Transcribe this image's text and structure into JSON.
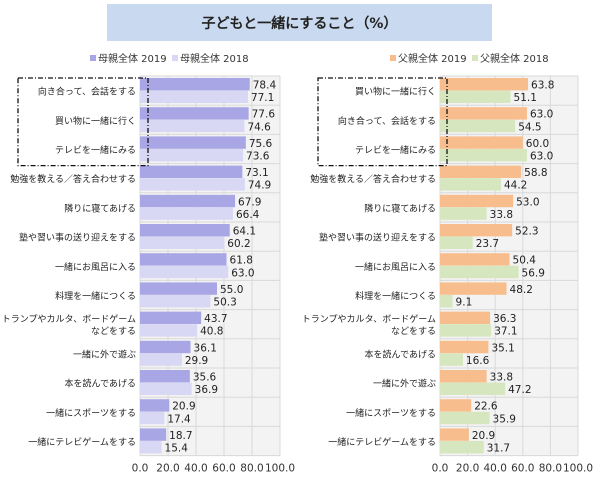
{
  "title": "子どもと一緒にすること（%）",
  "chart_data": [
    {
      "type": "bar",
      "orientation": "horizontal",
      "categories": [
        "向き合って、会話をする",
        "買い物に一緒に行く",
        "テレビを一緒にみる",
        "勉強を教える／答え合わせする",
        "隣りに寝てあげる",
        "塾や習い事の送り迎えをする",
        "一緒にお風呂に入る",
        "料理を一緒につくる",
        "トランプやカルタ、ボードゲーム\nなどをする",
        "一緒に外で遊ぶ",
        "本を読んであげる",
        "一緒にスポーツをする",
        "一緒にテレビゲームをする"
      ],
      "series": [
        {
          "name": "母親全体 2019",
          "color": "#a9a6e6",
          "values": [
            78.4,
            77.6,
            75.6,
            73.1,
            67.9,
            64.1,
            61.8,
            55.0,
            43.7,
            36.1,
            35.6,
            20.9,
            18.7
          ]
        },
        {
          "name": "母親全体 2018",
          "color": "#d9d8f4",
          "values": [
            77.1,
            74.6,
            73.6,
            74.9,
            66.4,
            60.2,
            63.0,
            50.3,
            40.8,
            29.9,
            36.9,
            17.4,
            15.4
          ]
        }
      ],
      "xlim": [
        0,
        100
      ],
      "ticks": [
        "0.0",
        "20.0",
        "40.0",
        "60.0",
        "80.0",
        "100.0"
      ],
      "legend": "top",
      "grid": true,
      "highlighted_top": 3
    },
    {
      "type": "bar",
      "orientation": "horizontal",
      "categories": [
        "買い物に一緒に行く",
        "向き合って、会話をする",
        "テレビを一緒にみる",
        "勉強を教える／答え合わせする",
        "隣りに寝てあげる",
        "塾や習い事の送り迎えをする",
        "一緒にお風呂に入る",
        "料理を一緒につくる",
        "トランプやカルタ、ボードゲーム\nなどをする",
        "本を読んであげる",
        "一緒に外で遊ぶ",
        "一緒にスポーツをする",
        "一緒にテレビゲームをする"
      ],
      "series": [
        {
          "name": "父親全体 2019",
          "color": "#f8bd8d",
          "values": [
            63.8,
            63.0,
            60.0,
            58.8,
            53.0,
            52.3,
            50.4,
            48.2,
            36.3,
            35.1,
            33.8,
            22.6,
            20.9
          ]
        },
        {
          "name": "父親全体 2018",
          "color": "#d6e7bf",
          "values": [
            51.1,
            54.5,
            63.0,
            44.2,
            33.8,
            23.7,
            56.9,
            9.1,
            37.1,
            16.6,
            47.2,
            35.9,
            31.7
          ]
        }
      ],
      "xlim": [
        0,
        100
      ],
      "ticks": [
        "0.0",
        "20.0",
        "40.0",
        "60.0",
        "80.0",
        "100.0"
      ],
      "legend": "top",
      "grid": true,
      "highlighted_top": 3
    }
  ]
}
